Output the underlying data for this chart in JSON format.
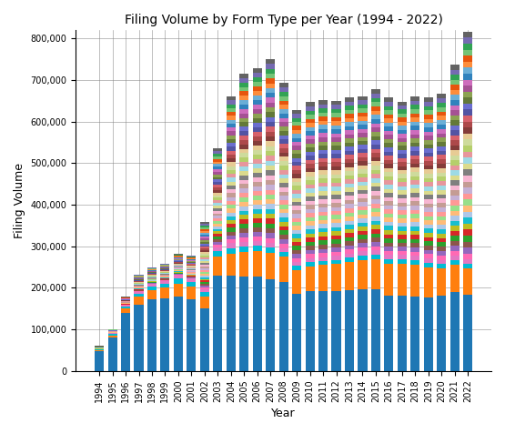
{
  "title": "Filing Volume by Form Type per Year (1994 - 2022)",
  "xlabel": "Year",
  "ylabel": "Filing Volume",
  "years": [
    1994,
    1995,
    1996,
    1997,
    1998,
    1999,
    2000,
    2001,
    2002,
    2003,
    2004,
    2005,
    2006,
    2007,
    2008,
    2009,
    2010,
    2011,
    2012,
    2013,
    2014,
    2015,
    2016,
    2017,
    2018,
    2019,
    2020,
    2021,
    2022
  ],
  "ylim": [
    0,
    820000
  ],
  "yticks": [
    0,
    100000,
    200000,
    300000,
    400000,
    500000,
    600000,
    700000,
    800000
  ],
  "ytick_labels": [
    "0",
    "100,000",
    "200,000",
    "300,000",
    "400,000",
    "500,000",
    "600,000",
    "700,000",
    "800,000"
  ],
  "totals": [
    60000,
    100000,
    178000,
    232000,
    249000,
    258000,
    282000,
    278000,
    358000,
    535000,
    660000,
    715000,
    728000,
    750000,
    692000,
    628000,
    646000,
    651000,
    650000,
    658000,
    661000,
    677000,
    657000,
    648000,
    660000,
    657000,
    666000,
    736000,
    816000
  ],
  "segment_colors": [
    "#1f77b4",
    "#ff7f0e",
    "#00bcd4",
    "#e377c2",
    "#ff69b4",
    "#9467bd",
    "#8c564b",
    "#2ca02c",
    "#d62728",
    "#bcbd22",
    "#17becf",
    "#aec7e8",
    "#ffbb78",
    "#98df8a",
    "#ff9896",
    "#c5b0d5",
    "#c49c94",
    "#f7b6d2",
    "#7f7f7f",
    "#dbdb8d",
    "#9edae5",
    "#e7969c",
    "#b5cf6b",
    "#cedb9c",
    "#e7cb94",
    "#843c39",
    "#ad494a",
    "#d6616b",
    "#5254a3",
    "#6b6ecf",
    "#637939",
    "#8ca252",
    "#a55194",
    "#ce6dbd",
    "#3182bd",
    "#6baed6",
    "#fd8d3c",
    "#e6550d",
    "#74c476",
    "#31a354",
    "#756bb1",
    "#636363"
  ],
  "blue_values": [
    47000,
    80000,
    140000,
    160000,
    172000,
    175000,
    178000,
    172000,
    150000,
    230000,
    230000,
    228000,
    228000,
    220000,
    215000,
    185000,
    192000,
    192000,
    192000,
    195000,
    196000,
    196000,
    181000,
    181000,
    179000,
    176000,
    181000,
    191000,
    184000
  ],
  "orange_values": [
    3000,
    6000,
    10000,
    18000,
    22000,
    25000,
    32000,
    30000,
    28000,
    45000,
    52000,
    58000,
    60000,
    65000,
    60000,
    58000,
    60000,
    63000,
    65000,
    67000,
    70000,
    72000,
    76000,
    76000,
    76000,
    73000,
    66000,
    64000,
    62000
  ],
  "cyan_values": [
    1500,
    3000,
    5000,
    7000,
    9000,
    10000,
    12000,
    12000,
    11000,
    13000,
    13000,
    13000,
    13000,
    12000,
    11000,
    10000,
    10000,
    10000,
    10500,
    11000,
    12000,
    12000,
    12000,
    12000,
    12000,
    12000,
    11000,
    12000,
    12000
  ],
  "pink_values": [
    500,
    1500,
    3000,
    5000,
    6000,
    7000,
    8000,
    8000,
    7000,
    10000,
    12000,
    12000,
    12000,
    11000,
    10000,
    9000,
    9000,
    9000,
    9000,
    9500,
    10000,
    10000,
    10000,
    10000,
    10000,
    10000,
    9500,
    10000,
    10000
  ]
}
